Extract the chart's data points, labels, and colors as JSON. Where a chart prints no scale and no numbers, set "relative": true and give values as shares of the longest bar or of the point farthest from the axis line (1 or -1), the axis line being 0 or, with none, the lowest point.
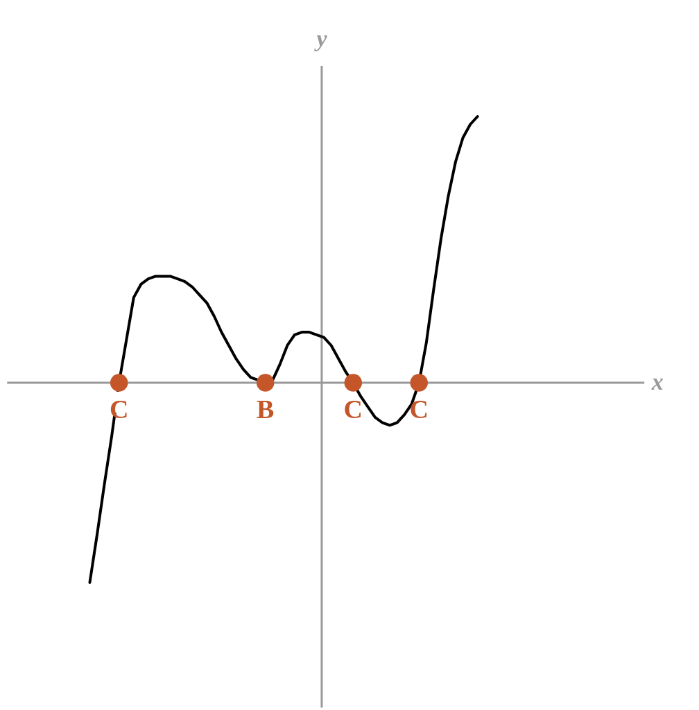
{
  "chart_data": {
    "type": "line",
    "relative": true,
    "annotations": [
      "x"
    ],
    "ylabel": "y",
    "categories": [
      null,
      null,
      null,
      null,
      "C",
      null,
      null,
      null,
      null,
      null,
      null,
      null,
      null,
      null,
      null,
      null,
      null,
      null,
      null,
      null,
      null,
      null,
      null,
      null,
      "B",
      null,
      null,
      null,
      null,
      null,
      null,
      null,
      null,
      null,
      null,
      null,
      "C",
      null,
      null,
      null,
      null,
      null,
      null,
      null,
      null,
      "C",
      null,
      null,
      null,
      null,
      null,
      null,
      null,
      null
    ],
    "series": [
      {
        "color": "#000000",
        "values": [
          -0.75,
          -0.57,
          -0.38,
          -0.2,
          0,
          0.16,
          0.32,
          0.37,
          0.39,
          0.4,
          0.4,
          0.4,
          0.39,
          0.38,
          0.36,
          0.33,
          0.3,
          0.25,
          0.19,
          0.14,
          0.09,
          0.05,
          0.02,
          0.01,
          0,
          0.01,
          0.07,
          0.14,
          0.18,
          0.19,
          0.19,
          0.18,
          0.17,
          0.14,
          0.09,
          0.04,
          0,
          -0.05,
          -0.09,
          -0.13,
          -0.15,
          -0.16,
          -0.15,
          -0.12,
          -0.08,
          0,
          0.15,
          0.35,
          0.54,
          0.7,
          0.83,
          0.92,
          0.97,
          1
        ]
      },
      {
        "type": "scatter",
        "color": "#c4562a",
        "values": [
          null,
          null,
          null,
          null,
          0,
          null,
          null,
          null,
          null,
          null,
          null,
          null,
          null,
          null,
          null,
          null,
          null,
          null,
          null,
          null,
          null,
          null,
          null,
          null,
          0,
          null,
          null,
          null,
          null,
          null,
          null,
          null,
          null,
          null,
          null,
          null,
          0,
          null,
          null,
          null,
          null,
          null,
          null,
          null,
          null,
          0,
          null,
          null,
          null,
          null,
          null,
          null,
          null,
          null
        ]
      }
    ]
  }
}
